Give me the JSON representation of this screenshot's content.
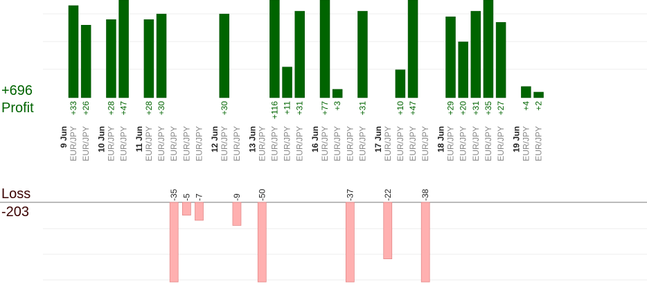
{
  "summary": {
    "profit_total": "+696",
    "profit_label": "Profit",
    "loss_label": "Loss",
    "loss_total": "-203"
  },
  "colors": {
    "profit_bar": "#006400",
    "loss_bar": "#ffb0b0",
    "profit_text": "#006400",
    "loss_text": "#3a0000",
    "pair_text": "#888888",
    "date_text": "#222222"
  },
  "chart_data": {
    "type": "bar",
    "title": "",
    "xlabel": "",
    "ylabel": "",
    "grid": true,
    "groups": [
      {
        "date": "9 Jun",
        "trades": [
          {
            "pair": "EUR/JPY",
            "value": 33
          },
          {
            "pair": "EUR/JPY",
            "value": 26
          }
        ]
      },
      {
        "date": "10 Jun",
        "trades": [
          {
            "pair": "EUR/JPY",
            "value": 28
          },
          {
            "pair": "EUR/JPY",
            "value": 47
          }
        ]
      },
      {
        "date": "11 Jun",
        "trades": [
          {
            "pair": "EUR/JPY",
            "value": 28
          },
          {
            "pair": "EUR/JPY",
            "value": 30
          },
          {
            "pair": "EUR/JPY",
            "value": -35
          },
          {
            "pair": "EUR/JPY",
            "value": -5
          },
          {
            "pair": "EUR/JPY",
            "value": -7
          }
        ]
      },
      {
        "date": "12 Jun",
        "trades": [
          {
            "pair": "EUR/JPY",
            "value": 30
          },
          {
            "pair": "EUR/JPY",
            "value": -9
          }
        ]
      },
      {
        "date": "13 Jun",
        "trades": [
          {
            "pair": "EUR/JPY",
            "value": -50
          },
          {
            "pair": "EUR/JPY",
            "value": 116
          },
          {
            "pair": "EUR/JPY",
            "value": 11
          },
          {
            "pair": "EUR/JPY",
            "value": 31
          }
        ]
      },
      {
        "date": "16 Jun",
        "trades": [
          {
            "pair": "EUR/JPY",
            "value": 77
          },
          {
            "pair": "EUR/JPY",
            "value": 3
          },
          {
            "pair": "EUR/JPY",
            "value": -37
          },
          {
            "pair": "EUR/JPY",
            "value": 31
          }
        ]
      },
      {
        "date": "17 Jun",
        "trades": [
          {
            "pair": "EUR/JPY",
            "value": -22
          },
          {
            "pair": "EUR/JPY",
            "value": 10
          },
          {
            "pair": "EUR/JPY",
            "value": 47
          },
          {
            "pair": "EUR/JPY",
            "value": -38
          }
        ]
      },
      {
        "date": "18 Jun",
        "trades": [
          {
            "pair": "EUR/JPY",
            "value": 29
          },
          {
            "pair": "EUR/JPY",
            "value": 20
          },
          {
            "pair": "EUR/JPY",
            "value": 31
          },
          {
            "pair": "EUR/JPY",
            "value": 35
          },
          {
            "pair": "EUR/JPY",
            "value": 27
          }
        ]
      },
      {
        "date": "19 Jun",
        "trades": [
          {
            "pair": "EUR/JPY",
            "value": 4
          },
          {
            "pair": "EUR/JPY",
            "value": 2
          }
        ]
      }
    ],
    "profit_scale_max": 35,
    "loss_scale_max": 31
  }
}
